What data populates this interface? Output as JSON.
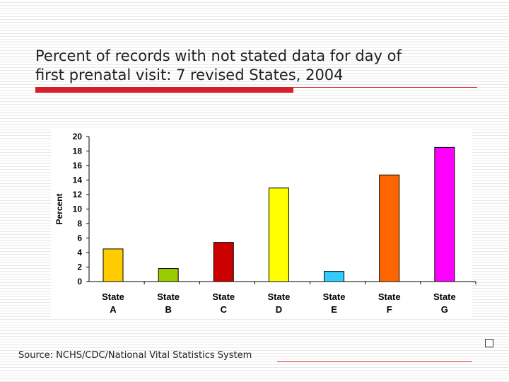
{
  "slide": {
    "title_line1": "Percent of records with not stated data for day of",
    "title_line2": "first prenatal visit: 7 revised States, 2004",
    "source": "Source: NCHS/CDC/National Vital Statistics System"
  },
  "chart_data": {
    "type": "bar",
    "title": "Percent of records with not stated data for day of first prenatal visit: 7 revised States, 2004",
    "xlabel": "",
    "ylabel": "Percent",
    "ylim": [
      0,
      20
    ],
    "yticks": [
      0,
      2,
      4,
      6,
      8,
      10,
      12,
      14,
      16,
      18,
      20
    ],
    "grid": false,
    "categories": [
      {
        "line1": "State",
        "line2": "A"
      },
      {
        "line1": "State",
        "line2": "B"
      },
      {
        "line1": "State",
        "line2": "C"
      },
      {
        "line1": "State",
        "line2": "D"
      },
      {
        "line1": "State",
        "line2": "E"
      },
      {
        "line1": "State",
        "line2": "F"
      },
      {
        "line1": "State",
        "line2": "G"
      }
    ],
    "values": [
      4.5,
      1.8,
      5.4,
      12.9,
      1.4,
      14.7,
      18.5
    ],
    "colors": [
      "#ffcc00",
      "#99cc00",
      "#cc0000",
      "#ffff00",
      "#33ccff",
      "#ff6600",
      "#ff00ff"
    ]
  }
}
